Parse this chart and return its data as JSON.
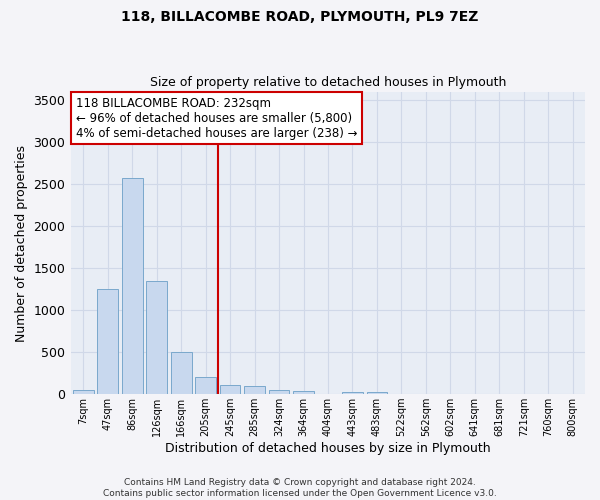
{
  "title": "118, BILLACOMBE ROAD, PLYMOUTH, PL9 7EZ",
  "subtitle": "Size of property relative to detached houses in Plymouth",
  "xlabel": "Distribution of detached houses by size in Plymouth",
  "ylabel": "Number of detached properties",
  "bar_labels": [
    "7sqm",
    "47sqm",
    "86sqm",
    "126sqm",
    "166sqm",
    "205sqm",
    "245sqm",
    "285sqm",
    "324sqm",
    "364sqm",
    "404sqm",
    "443sqm",
    "483sqm",
    "522sqm",
    "562sqm",
    "602sqm",
    "641sqm",
    "681sqm",
    "721sqm",
    "760sqm",
    "800sqm"
  ],
  "bar_values": [
    50,
    1250,
    2580,
    1350,
    500,
    200,
    110,
    100,
    45,
    35,
    0,
    30,
    25,
    0,
    0,
    0,
    0,
    0,
    0,
    0,
    0
  ],
  "bar_color": "#c8d8ee",
  "bar_edge_color": "#7aa8cc",
  "vline_x_idx": 6,
  "vline_color": "#cc0000",
  "annotation_text": "118 BILLACOMBE ROAD: 232sqm\n← 96% of detached houses are smaller (5,800)\n4% of semi-detached houses are larger (238) →",
  "annotation_box_color": "#ffffff",
  "annotation_box_edge": "#cc0000",
  "ylim": [
    0,
    3600
  ],
  "yticks": [
    0,
    500,
    1000,
    1500,
    2000,
    2500,
    3000,
    3500
  ],
  "grid_color": "#d0d8e8",
  "bg_color": "#e8edf5",
  "fig_bg_color": "#f4f4f8",
  "footer": "Contains HM Land Registry data © Crown copyright and database right 2024.\nContains public sector information licensed under the Open Government Licence v3.0."
}
